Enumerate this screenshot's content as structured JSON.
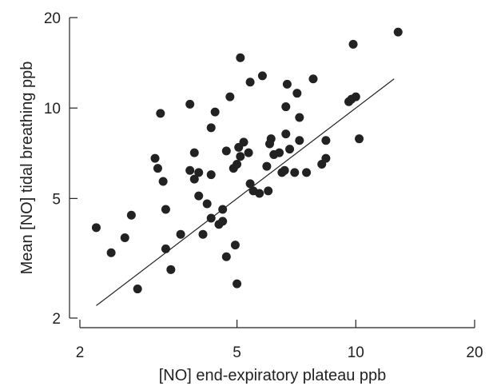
{
  "chart_data": {
    "type": "scatter",
    "xlabel": "[NO] end-expiratory plateau ppb",
    "ylabel": "Mean [NO] tidal breathing ppb",
    "x_scale": "log",
    "y_scale": "log",
    "xlim": [
      2,
      20
    ],
    "ylim": [
      2,
      20
    ],
    "x_ticks": [
      2,
      5,
      10,
      20
    ],
    "y_ticks": [
      2,
      5,
      10,
      20
    ],
    "grid": false,
    "points": [
      {
        "x": 2.2,
        "y": 4.0
      },
      {
        "x": 2.4,
        "y": 3.3
      },
      {
        "x": 2.6,
        "y": 3.7
      },
      {
        "x": 2.7,
        "y": 4.4
      },
      {
        "x": 2.8,
        "y": 2.5
      },
      {
        "x": 3.1,
        "y": 6.8
      },
      {
        "x": 3.15,
        "y": 6.3
      },
      {
        "x": 3.2,
        "y": 9.6
      },
      {
        "x": 3.25,
        "y": 5.7
      },
      {
        "x": 3.3,
        "y": 4.6
      },
      {
        "x": 3.3,
        "y": 3.4
      },
      {
        "x": 3.4,
        "y": 2.9
      },
      {
        "x": 3.6,
        "y": 3.8
      },
      {
        "x": 3.8,
        "y": 10.3
      },
      {
        "x": 3.8,
        "y": 6.2
      },
      {
        "x": 3.9,
        "y": 7.1
      },
      {
        "x": 3.9,
        "y": 5.8
      },
      {
        "x": 4.0,
        "y": 6.1
      },
      {
        "x": 4.0,
        "y": 5.1
      },
      {
        "x": 4.1,
        "y": 3.8
      },
      {
        "x": 4.2,
        "y": 4.8
      },
      {
        "x": 4.3,
        "y": 8.6
      },
      {
        "x": 4.3,
        "y": 6.0
      },
      {
        "x": 4.3,
        "y": 4.3
      },
      {
        "x": 4.4,
        "y": 9.7
      },
      {
        "x": 4.5,
        "y": 4.1
      },
      {
        "x": 4.6,
        "y": 4.6
      },
      {
        "x": 4.6,
        "y": 4.2
      },
      {
        "x": 4.7,
        "y": 7.2
      },
      {
        "x": 4.7,
        "y": 3.2
      },
      {
        "x": 4.8,
        "y": 10.9
      },
      {
        "x": 4.9,
        "y": 6.3
      },
      {
        "x": 4.95,
        "y": 3.5
      },
      {
        "x": 5.0,
        "y": 2.6
      },
      {
        "x": 5.0,
        "y": 6.5
      },
      {
        "x": 5.05,
        "y": 7.4
      },
      {
        "x": 5.1,
        "y": 6.9
      },
      {
        "x": 5.1,
        "y": 14.7
      },
      {
        "x": 5.2,
        "y": 7.7
      },
      {
        "x": 5.35,
        "y": 7.1
      },
      {
        "x": 5.4,
        "y": 5.6
      },
      {
        "x": 5.4,
        "y": 12.2
      },
      {
        "x": 5.5,
        "y": 5.3
      },
      {
        "x": 5.7,
        "y": 5.2
      },
      {
        "x": 5.8,
        "y": 12.8
      },
      {
        "x": 5.95,
        "y": 6.4
      },
      {
        "x": 6.0,
        "y": 5.3
      },
      {
        "x": 6.05,
        "y": 7.6
      },
      {
        "x": 6.1,
        "y": 7.9
      },
      {
        "x": 6.2,
        "y": 7.0
      },
      {
        "x": 6.4,
        "y": 7.1
      },
      {
        "x": 6.5,
        "y": 6.1
      },
      {
        "x": 6.6,
        "y": 6.2
      },
      {
        "x": 6.65,
        "y": 8.2
      },
      {
        "x": 6.65,
        "y": 10.1
      },
      {
        "x": 6.7,
        "y": 12.0
      },
      {
        "x": 6.8,
        "y": 7.3
      },
      {
        "x": 7.0,
        "y": 6.1
      },
      {
        "x": 7.1,
        "y": 11.2
      },
      {
        "x": 7.2,
        "y": 9.3
      },
      {
        "x": 7.2,
        "y": 7.8
      },
      {
        "x": 7.5,
        "y": 6.1
      },
      {
        "x": 7.8,
        "y": 12.5
      },
      {
        "x": 8.2,
        "y": 6.5
      },
      {
        "x": 8.4,
        "y": 6.8
      },
      {
        "x": 8.4,
        "y": 7.8
      },
      {
        "x": 9.6,
        "y": 10.5
      },
      {
        "x": 9.75,
        "y": 10.7
      },
      {
        "x": 9.85,
        "y": 16.3
      },
      {
        "x": 10.0,
        "y": 10.9
      },
      {
        "x": 10.2,
        "y": 7.9
      },
      {
        "x": 12.8,
        "y": 17.9
      }
    ],
    "trend_line": {
      "x": [
        2.2,
        12.5
      ],
      "y": [
        2.2,
        12.5
      ]
    }
  }
}
